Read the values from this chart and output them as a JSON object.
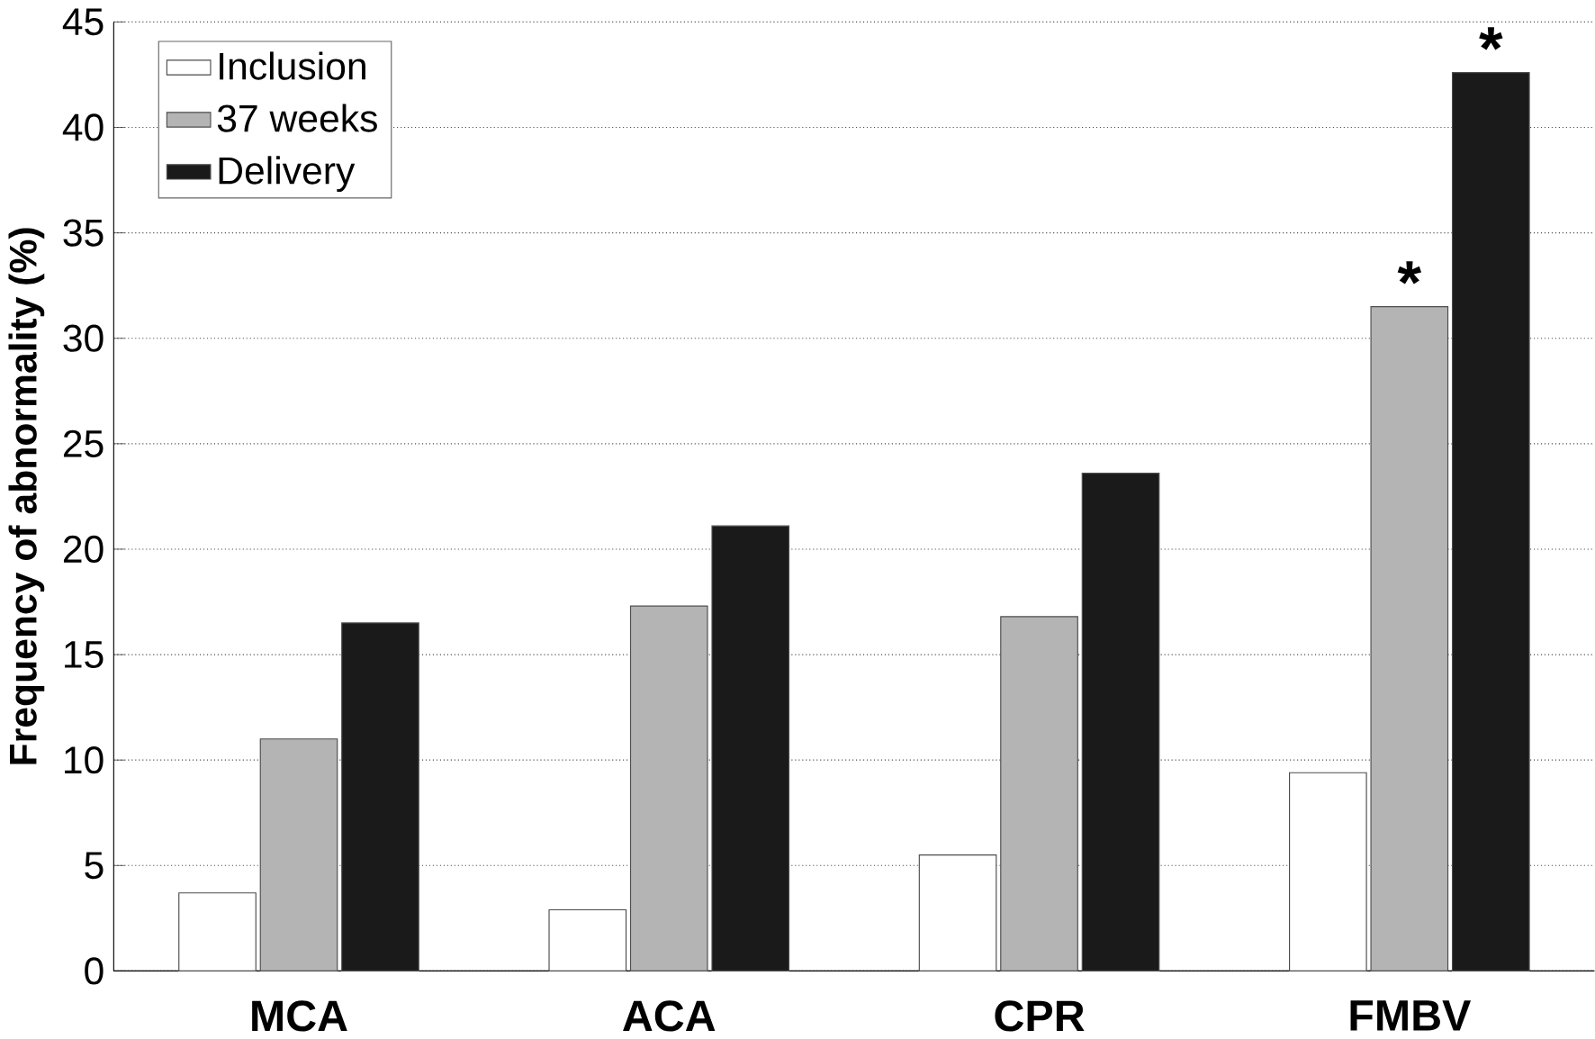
{
  "chart_data": {
    "type": "bar",
    "ylabel": "Frequency of abnormality (%)",
    "categories": [
      "MCA",
      "ACA",
      "CPR",
      "FMBV"
    ],
    "series": [
      {
        "name": "Inclusion",
        "color": "#ffffff",
        "values": [
          3.7,
          2.9,
          5.5,
          9.4
        ]
      },
      {
        "name": "37 weeks",
        "color": "#b4b4b4",
        "values": [
          11.0,
          17.3,
          16.8,
          31.5
        ]
      },
      {
        "name": "Delivery",
        "color": "#1a1a1a",
        "values": [
          16.5,
          21.1,
          23.6,
          42.6
        ]
      }
    ],
    "ylim": [
      0,
      45
    ],
    "yticks": [
      0,
      5,
      10,
      15,
      20,
      25,
      30,
      35,
      40,
      45
    ],
    "grid": "y",
    "legend": "top left",
    "annotations": [
      "*",
      "*"
    ]
  }
}
